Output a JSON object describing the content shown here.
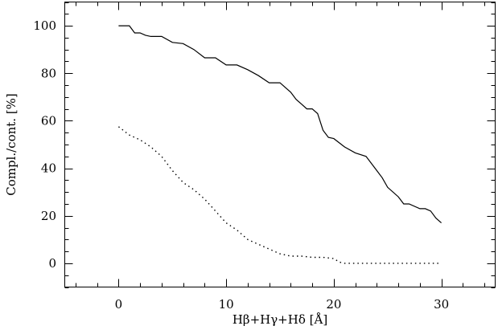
{
  "chart_data": {
    "type": "line",
    "xlabel": "Hβ+Hγ+Hδ  [Å]",
    "ylabel": "Compl./cont.  [%]",
    "xlim": [
      -5,
      35
    ],
    "ylim": [
      -10,
      110
    ],
    "xticks": [
      0,
      10,
      20,
      30
    ],
    "yticks": [
      0,
      20,
      40,
      60,
      80,
      100
    ],
    "xtick_labels": [
      "0",
      "10",
      "20",
      "30"
    ],
    "ytick_labels": [
      "0",
      "20",
      "40",
      "60",
      "80",
      "100"
    ],
    "x_minor_step": 2,
    "y_minor_step": 5,
    "grid": false,
    "series": [
      {
        "style": "solid",
        "color": "#000000",
        "x": [
          0,
          1,
          1.5,
          2,
          2.5,
          3,
          4,
          5,
          6,
          7,
          8,
          9,
          10,
          11,
          12,
          13,
          14,
          15,
          16,
          16.5,
          17,
          17.5,
          18,
          18.5,
          19,
          19.5,
          20,
          21,
          22,
          23,
          24,
          24.5,
          25,
          26,
          26.5,
          27,
          28,
          28.5,
          29,
          29.5,
          30
        ],
        "y": [
          100,
          100,
          97,
          97,
          96,
          95.5,
          95.5,
          93,
          92.5,
          90,
          86.5,
          86.5,
          83.5,
          83.5,
          81.5,
          79,
          76,
          76,
          72,
          69,
          67,
          65,
          65,
          63,
          56,
          53,
          52.5,
          49,
          46.5,
          45,
          39,
          36,
          32,
          28,
          25,
          25,
          23,
          23,
          22,
          19,
          17
        ]
      },
      {
        "style": "dotted",
        "color": "#000000",
        "x": [
          0,
          1,
          2,
          3,
          4,
          5,
          6,
          7,
          8,
          9,
          10,
          11,
          12,
          13,
          14,
          15,
          16,
          17,
          18,
          19,
          20,
          20.5,
          21,
          22,
          23,
          24,
          25,
          26,
          27,
          28,
          29,
          30
        ],
        "y": [
          57.5,
          54,
          52,
          49,
          45,
          39,
          34,
          31,
          27,
          22,
          17,
          14,
          10,
          8,
          6,
          4,
          3,
          3,
          2.5,
          2.5,
          2,
          0.5,
          0,
          0,
          0,
          0,
          0,
          0,
          0,
          0,
          0,
          0
        ]
      }
    ]
  }
}
